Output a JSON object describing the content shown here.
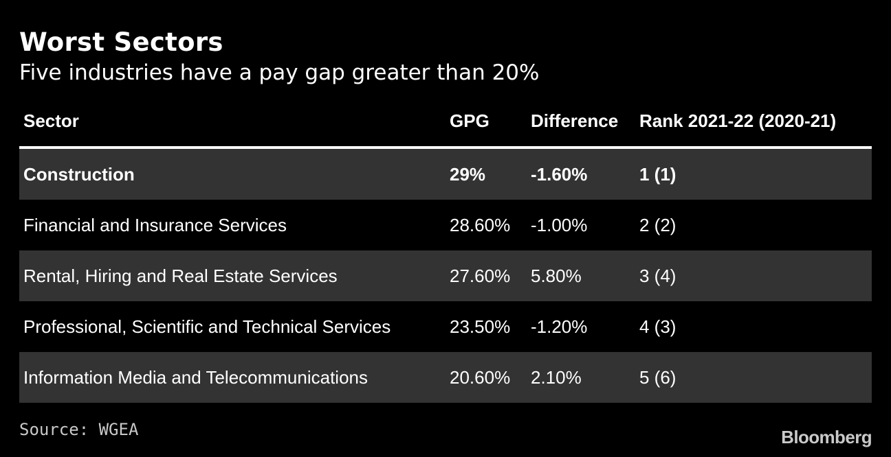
{
  "title": "Worst Sectors",
  "subtitle": "Five industries have a pay gap greater than 20%",
  "source": "Source: WGEA",
  "brand": "Bloomberg",
  "colors": {
    "background": "#000000",
    "text": "#ffffff",
    "row_shade": "#333333",
    "muted": "#c9c9c9"
  },
  "chart_data": {
    "type": "table",
    "columns": [
      "Sector",
      "GPG",
      "Difference",
      "Rank 2021-22 (2020-21)"
    ],
    "rows": [
      {
        "sector": "Construction",
        "gpg": "29%",
        "difference": "-1.60%",
        "rank": "1 (1)"
      },
      {
        "sector": "Financial and Insurance Services",
        "gpg": "28.60%",
        "difference": "-1.00%",
        "rank": "2 (2)"
      },
      {
        "sector": "Rental, Hiring and Real Estate Services",
        "gpg": "27.60%",
        "difference": "5.80%",
        "rank": "3 (4)"
      },
      {
        "sector": "Professional, Scientific and Technical Services",
        "gpg": "23.50%",
        "difference": "-1.20%",
        "rank": "4 (3)"
      },
      {
        "sector": "Information Media and Telecommunications",
        "gpg": "20.60%",
        "difference": "2.10%",
        "rank": "5 (6)"
      }
    ]
  }
}
